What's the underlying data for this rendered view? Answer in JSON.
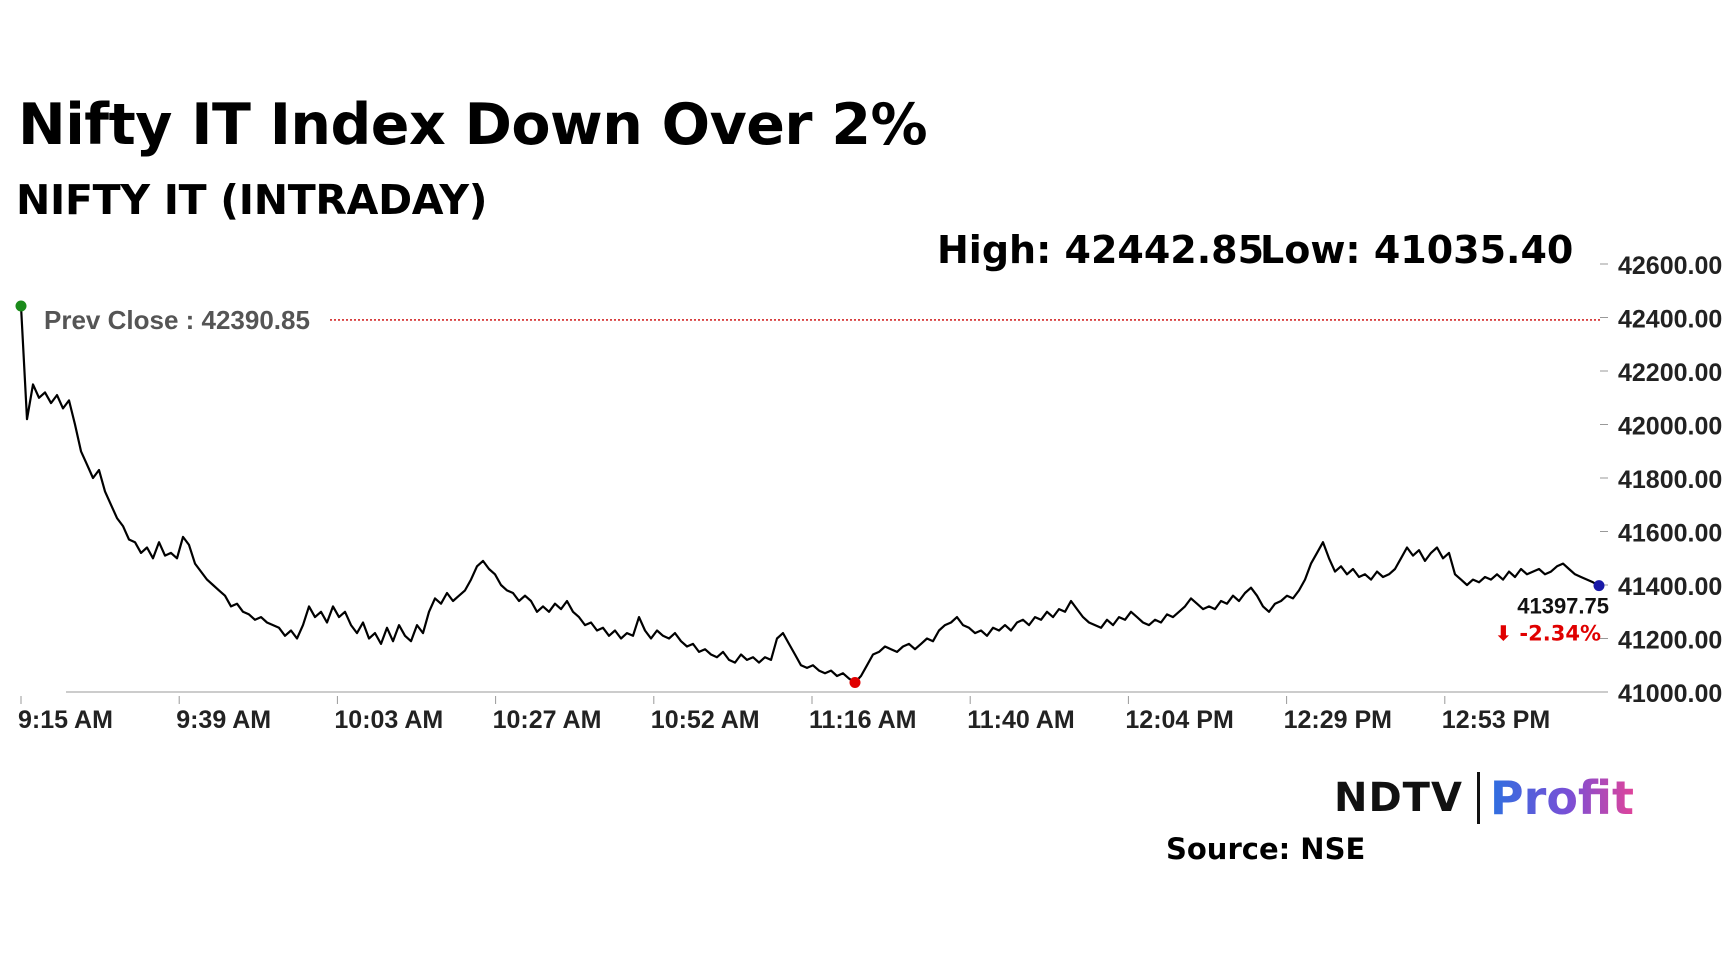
{
  "header": {
    "title": "Nifty IT Index Down Over 2%",
    "subtitle": "NIFTY IT (INTRADAY)",
    "high_label": "High: 42442.85",
    "low_label": "Low: 41035.40"
  },
  "footer": {
    "logo_ndtv": "NDTV",
    "logo_profit": "Profit",
    "source": "Source: NSE"
  },
  "colors": {
    "line": "#000000",
    "prev_close_line": "#cc0000",
    "start_dot": "#1a8a1a",
    "low_dot": "#e00000",
    "end_dot": "#1a1aa8",
    "change_negative": "#e00000"
  },
  "chart_data": {
    "type": "line",
    "ylim": [
      41000,
      42600
    ],
    "y_ticks": [
      "41000.00",
      "41200.00",
      "41400.00",
      "41600.00",
      "41800.00",
      "42000.00",
      "42200.00",
      "42400.00",
      "42600.00"
    ],
    "x_ticks": [
      "9:15 AM",
      "9:39 AM",
      "10:03 AM",
      "10:27 AM",
      "10:52 AM",
      "11:16 AM",
      "11:40 AM",
      "12:04 PM",
      "12:29 PM",
      "12:53 PM"
    ],
    "prev_close": 42390.85,
    "prev_close_label": "Prev Close : 42390.85",
    "last_value": "41397.75",
    "change_label": "⬇ -2.34%",
    "high": 42442.85,
    "low": 41035.4,
    "series": [
      {
        "values": [
          42442.85,
          42020,
          42150,
          42100,
          42120,
          42080,
          42110,
          42060,
          42090,
          42000,
          41900,
          41850,
          41800,
          41830,
          41750,
          41700,
          41650,
          41620,
          41570,
          41560,
          41520,
          41540,
          41500,
          41560,
          41510,
          41520,
          41500,
          41580,
          41550,
          41480,
          41450,
          41420,
          41400,
          41380,
          41360,
          41320,
          41330,
          41300,
          41290,
          41270,
          41280,
          41260,
          41250,
          41240,
          41210,
          41230,
          41200,
          41250,
          41320,
          41280,
          41300,
          41260,
          41320,
          41280,
          41300,
          41250,
          41220,
          41260,
          41200,
          41220,
          41180,
          41240,
          41190,
          41250,
          41210,
          41190,
          41250,
          41220,
          41300,
          41350,
          41330,
          41370,
          41340,
          41360,
          41380,
          41420,
          41470,
          41490,
          41460,
          41440,
          41400,
          41380,
          41370,
          41340,
          41360,
          41340,
          41300,
          41320,
          41300,
          41330,
          41310,
          41340,
          41300,
          41280,
          41250,
          41260,
          41230,
          41240,
          41210,
          41230,
          41200,
          41220,
          41210,
          41280,
          41230,
          41200,
          41230,
          41210,
          41200,
          41220,
          41190,
          41170,
          41180,
          41150,
          41160,
          41140,
          41130,
          41150,
          41120,
          41110,
          41140,
          41120,
          41130,
          41110,
          41130,
          41120,
          41200,
          41220,
          41180,
          41140,
          41100,
          41090,
          41100,
          41080,
          41070,
          41080,
          41060,
          41070,
          41050,
          41035.4,
          41060,
          41100,
          41140,
          41150,
          41170,
          41160,
          41150,
          41170,
          41180,
          41160,
          41180,
          41200,
          41190,
          41230,
          41250,
          41260,
          41280,
          41250,
          41240,
          41220,
          41230,
          41210,
          41240,
          41230,
          41250,
          41230,
          41260,
          41270,
          41250,
          41280,
          41270,
          41300,
          41280,
          41310,
          41300,
          41340,
          41310,
          41280,
          41260,
          41250,
          41240,
          41270,
          41250,
          41280,
          41270,
          41300,
          41280,
          41260,
          41250,
          41270,
          41260,
          41290,
          41280,
          41300,
          41320,
          41350,
          41330,
          41310,
          41320,
          41310,
          41340,
          41330,
          41360,
          41340,
          41370,
          41390,
          41360,
          41320,
          41300,
          41330,
          41340,
          41360,
          41350,
          41380,
          41420,
          41480,
          41520,
          41560,
          41500,
          41450,
          41470,
          41440,
          41460,
          41430,
          41440,
          41420,
          41450,
          41430,
          41440,
          41460,
          41500,
          41540,
          41510,
          41530,
          41490,
          41520,
          41540,
          41500,
          41520,
          41440,
          41420,
          41400,
          41420,
          41410,
          41430,
          41420,
          41440,
          41420,
          41450,
          41430,
          41460,
          41440,
          41450,
          41460,
          41440,
          41450,
          41470,
          41480,
          41460,
          41440,
          41430,
          41420,
          41410,
          41397.75
        ]
      }
    ]
  }
}
